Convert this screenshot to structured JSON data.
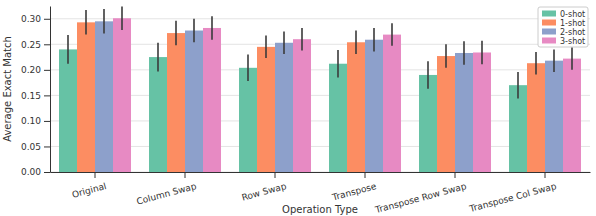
{
  "chart_data": {
    "type": "bar",
    "x_label": "Operation Type",
    "y_label": "Average Exact Match",
    "categories": [
      "Original",
      "Column Swap",
      "Row Swap",
      "Transpose",
      "Transpose Row Swap",
      "Transpose Col Swap"
    ],
    "series": [
      {
        "name": "0-shot",
        "color": "#66c2a5",
        "values": [
          0.24,
          0.225,
          0.204,
          0.212,
          0.19,
          0.17
        ],
        "errors": [
          0.028,
          0.028,
          0.026,
          0.027,
          0.027,
          0.026
        ]
      },
      {
        "name": "1-shot",
        "color": "#fc8d62",
        "values": [
          0.293,
          0.272,
          0.245,
          0.254,
          0.227,
          0.213
        ],
        "errors": [
          0.024,
          0.024,
          0.022,
          0.023,
          0.023,
          0.022
        ]
      },
      {
        "name": "2-shot",
        "color": "#8da0cb",
        "values": [
          0.295,
          0.277,
          0.253,
          0.259,
          0.233,
          0.218
        ],
        "errors": [
          0.024,
          0.023,
          0.022,
          0.023,
          0.023,
          0.022
        ]
      },
      {
        "name": "3-shot",
        "color": "#e78ac3",
        "values": [
          0.301,
          0.282,
          0.26,
          0.269,
          0.234,
          0.222
        ],
        "errors": [
          0.023,
          0.023,
          0.022,
          0.022,
          0.023,
          0.022
        ]
      }
    ],
    "ylim": [
      0,
      0.325
    ],
    "yticks": [
      {
        "value": 0,
        "label": "0.00"
      },
      {
        "value": 0.05,
        "label": "0.05"
      },
      {
        "value": 0.1,
        "label": "0.10"
      },
      {
        "value": 0.15,
        "label": "0.15"
      },
      {
        "value": 0.2,
        "label": "0.20"
      },
      {
        "value": 0.25,
        "label": "0.25"
      },
      {
        "value": 0.3,
        "label": "0.30"
      }
    ],
    "grid": true,
    "legend": "upper right"
  }
}
